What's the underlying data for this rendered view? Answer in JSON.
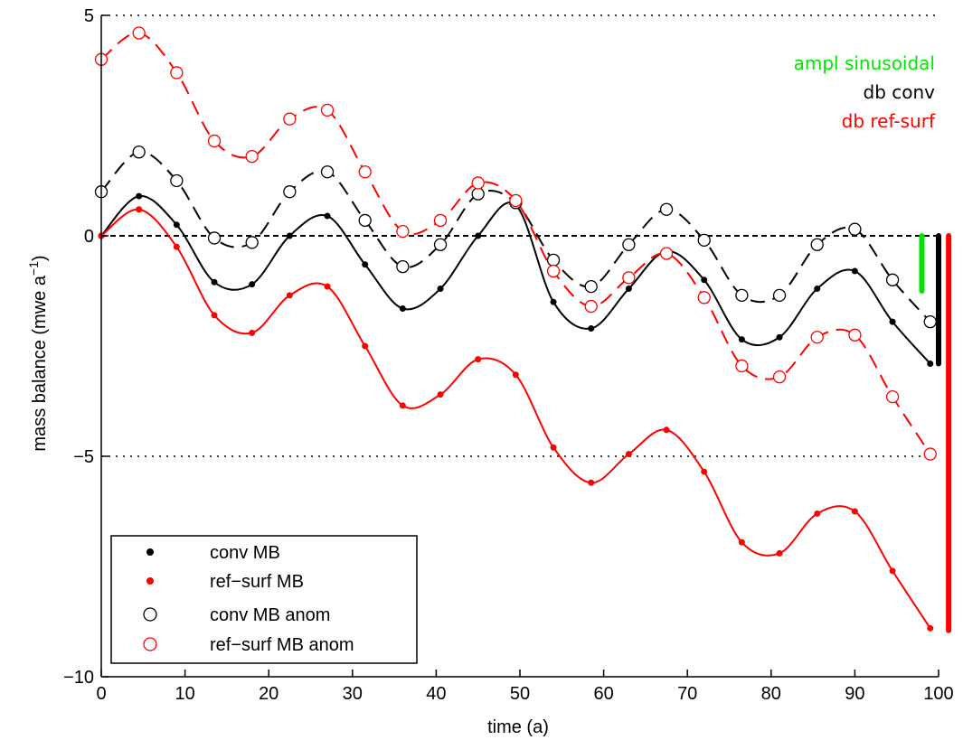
{
  "chart_data": {
    "type": "line",
    "xlabel": "time (a)",
    "ylabel": "mass balance (mwe a",
    "ylabel_sup": "−1",
    "ylabel_close": ")",
    "xlim": [
      0,
      100
    ],
    "ylim": [
      -10,
      5
    ],
    "xticks": [
      0,
      10,
      20,
      30,
      40,
      50,
      60,
      70,
      80,
      90,
      100
    ],
    "yticks": [
      -10,
      -5,
      0,
      5
    ],
    "ytick_labels": [
      "−10",
      "−5",
      "0",
      "5"
    ],
    "hlines": [
      5,
      0,
      -5
    ],
    "series": [
      {
        "name": "conv MB",
        "color": "#000000",
        "marker": "dot",
        "line": "solid",
        "x": [
          0,
          4.5,
          9,
          13.5,
          18,
          22.5,
          27,
          31.5,
          36,
          40.5,
          45,
          49.5,
          54,
          58.5,
          63,
          67.5,
          72,
          76.5,
          81,
          85.5,
          90,
          94.5,
          99
        ],
        "values": [
          0,
          0.9,
          0.25,
          -1.05,
          -1.1,
          0.0,
          0.45,
          -0.65,
          -1.65,
          -1.2,
          0.0,
          0.7,
          -1.5,
          -2.1,
          -1.2,
          -0.35,
          -1.0,
          -2.35,
          -2.3,
          -1.2,
          -0.8,
          -1.95,
          -2.9
        ]
      },
      {
        "name": "ref−surf MB",
        "color": "#ff0000",
        "marker": "dot",
        "line": "solid",
        "x": [
          0,
          4.5,
          9,
          13.5,
          18,
          22.5,
          27,
          31.5,
          36,
          40.5,
          45,
          49.5,
          54,
          58.5,
          63,
          67.5,
          72,
          76.5,
          81,
          85.5,
          90,
          94.5,
          99
        ],
        "values": [
          0,
          0.6,
          -0.25,
          -1.8,
          -2.2,
          -1.35,
          -1.15,
          -2.5,
          -3.85,
          -3.6,
          -2.8,
          -3.15,
          -4.8,
          -5.6,
          -4.95,
          -4.4,
          -5.35,
          -6.95,
          -7.2,
          -6.3,
          -6.25,
          -7.6,
          -8.9
        ]
      },
      {
        "name": "conv MB anom",
        "color": "#000000",
        "marker": "circle",
        "line": "dashed",
        "x": [
          0,
          4.5,
          9,
          13.5,
          18,
          22.5,
          27,
          31.5,
          36,
          40.5,
          45,
          49.5,
          54,
          58.5,
          63,
          67.5,
          72,
          76.5,
          81,
          85.5,
          90,
          94.5,
          99
        ],
        "values": [
          1.0,
          1.9,
          1.25,
          -0.05,
          -0.15,
          1.0,
          1.45,
          0.35,
          -0.7,
          -0.2,
          0.95,
          0.75,
          -0.55,
          -1.15,
          -0.2,
          0.6,
          -0.1,
          -1.35,
          -1.35,
          -0.2,
          0.15,
          -1.0,
          -1.95
        ]
      },
      {
        "name": "ref−surf MB anom",
        "color": "#ff0000",
        "marker": "circle",
        "line": "dashed",
        "x": [
          0,
          4.5,
          9,
          13.5,
          18,
          22.5,
          27,
          31.5,
          36,
          40.5,
          45,
          49.5,
          54,
          58.5,
          63,
          67.5,
          72,
          76.5,
          81,
          85.5,
          90,
          94.5,
          99
        ],
        "values": [
          4.0,
          4.6,
          3.7,
          2.15,
          1.8,
          2.65,
          2.85,
          1.45,
          0.1,
          0.35,
          1.2,
          0.8,
          -0.8,
          -1.6,
          -0.95,
          -0.4,
          -1.4,
          -2.95,
          -3.2,
          -2.3,
          -2.25,
          -3.65,
          -4.95
        ]
      }
    ],
    "bars": [
      {
        "name": "ampl sinusoidal",
        "color": "#00e600",
        "x": 98,
        "from": 0,
        "to": -1.25
      },
      {
        "name": "db conv",
        "color": "#000000",
        "x": 100,
        "from": 0,
        "to": -2.9
      },
      {
        "name": "db ref-surf",
        "color": "#ff0000",
        "x": 101.2,
        "from": 0,
        "to": -8.95
      }
    ],
    "annotations": [
      {
        "text": "ampl sinusoidal",
        "color": "#00e600"
      },
      {
        "text": "db conv",
        "color": "#000000"
      },
      {
        "text": "db ref-surf",
        "color": "#ff0000"
      }
    ],
    "legend": {
      "position": "bottom-left",
      "entries": [
        "conv MB",
        "ref−surf MB",
        "conv MB anom",
        "ref−surf MB anom"
      ]
    }
  }
}
